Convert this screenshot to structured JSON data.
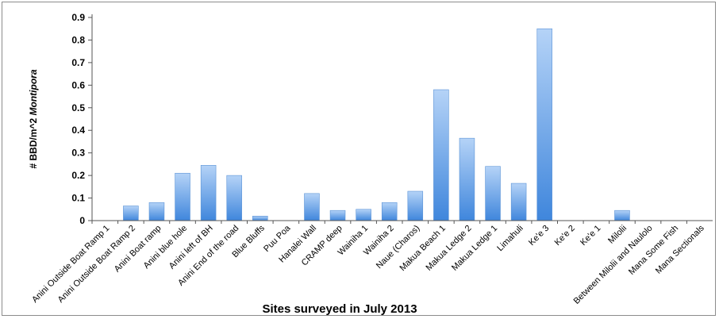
{
  "chart_data": {
    "type": "bar",
    "xlabel": "Sites surveyed in July 2013",
    "ylabel_prefix": "# BBD/m^2 ",
    "ylabel_italic": "Montipora",
    "ylim": [
      0,
      0.9
    ],
    "yticks": [
      "0",
      "0.1",
      "0.2",
      "0.3",
      "0.4",
      "0.5",
      "0.6",
      "0.7",
      "0.8",
      "0.9"
    ],
    "grid": false,
    "categories": [
      "Anini Outside Boat Ramp 1",
      "Anini Outside Boat Ramp 2",
      "Anini Boat ramp",
      "Anini blue hole",
      "Anini left of BH",
      "Anini End of the road",
      "Blue Bluffs",
      "Puu Poa",
      "Hanalei Wall",
      "CRAMP deep",
      "Wainiha 1",
      "Wainiha 2",
      "Naue (Charos)",
      "Makua Beach 1",
      "Makua Ledge 2",
      "Makua Ledge 1",
      "Limahuli",
      "Ke'e 3",
      "Ke'e 2",
      "Ke'e 1",
      "Milolii",
      "Between Milolii and Naulolo",
      "Mana Some Fish",
      "Mana Sectionals"
    ],
    "values": [
      0,
      0.065,
      0.08,
      0.21,
      0.245,
      0.2,
      0.02,
      0,
      0.12,
      0.045,
      0.05,
      0.08,
      0.13,
      0.58,
      0.365,
      0.24,
      0.165,
      0.85,
      0,
      0,
      0.045,
      0,
      0,
      0
    ],
    "colors": {
      "bar_top": "#b5d3f7",
      "bar_bottom": "#3f86dc",
      "bar_edge": "#5b93d6",
      "axis": "#555555"
    }
  }
}
